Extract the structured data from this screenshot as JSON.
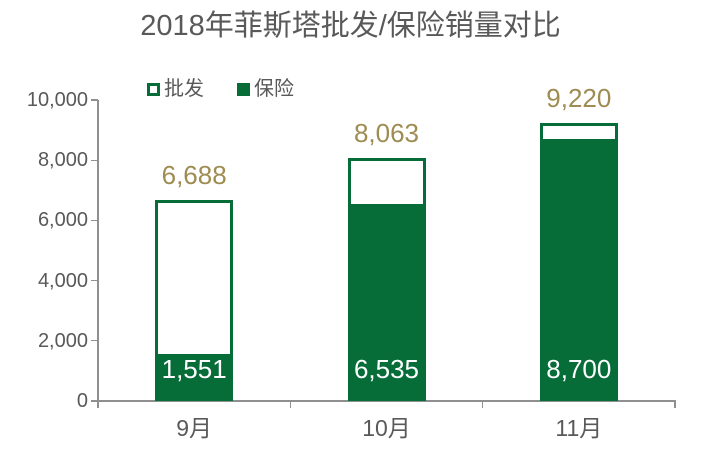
{
  "chart_data": {
    "type": "bar",
    "variant": "overlay-outline-vs-filled",
    "title": "2018年菲斯塔批发/保险销量对比",
    "categories": [
      "9月",
      "10月",
      "11月"
    ],
    "series": [
      {
        "name": "批发",
        "style": "outline",
        "values": [
          6688,
          8063,
          9220
        ],
        "labels": [
          "6,688",
          "8,063",
          "9,220"
        ]
      },
      {
        "name": "保险",
        "style": "filled",
        "values": [
          1551,
          6535,
          8700
        ],
        "labels": [
          "1,551",
          "6,535",
          "8,700"
        ]
      }
    ],
    "ylim": [
      0,
      10000
    ],
    "ytick_values": [
      0,
      2000,
      4000,
      6000,
      8000,
      10000
    ],
    "ytick_labels": [
      "0",
      "2,000",
      "4,000",
      "6,000",
      "8,000",
      "10,000"
    ],
    "legend_position": "top-left",
    "grid": false,
    "colors": {
      "green": "#066C38",
      "outline_fill": "#FFFFFF",
      "value_label_gold": "#9E8C52",
      "inside_label_white": "#FFFFFF",
      "text_grey": "#595959",
      "axis_grey": "#8F8F8F",
      "background": "#FFFFFF"
    }
  }
}
